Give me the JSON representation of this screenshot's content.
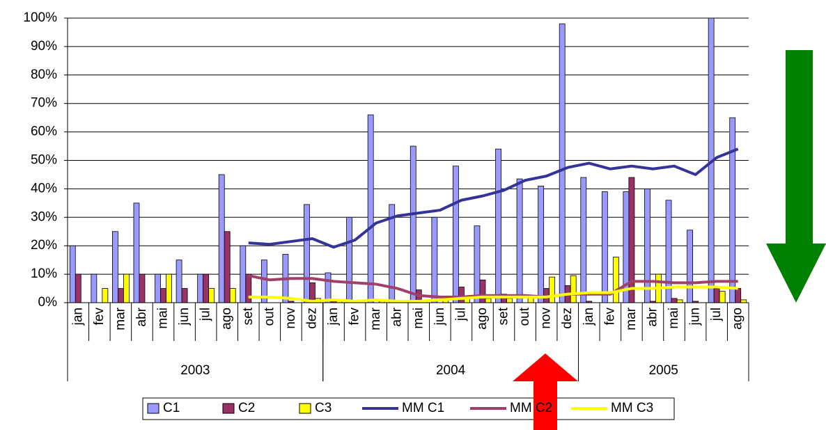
{
  "chart_data": {
    "type": "bar",
    "groups": [
      {
        "label": "2003",
        "categories": [
          "jan",
          "fev",
          "mar",
          "abr",
          "mai",
          "jun",
          "jul",
          "ago",
          "set",
          "out",
          "nov",
          "dez"
        ]
      },
      {
        "label": "2004",
        "categories": [
          "jan",
          "fev",
          "mar",
          "abr",
          "mai",
          "jun",
          "jul",
          "ago",
          "set",
          "out",
          "nov",
          "dez"
        ]
      },
      {
        "label": "2005",
        "categories": [
          "jan",
          "fev",
          "mar",
          "abr",
          "mai",
          "jun",
          "jul",
          "ago"
        ]
      }
    ],
    "series": [
      {
        "name": "C1",
        "type": "bar",
        "color": "#9999ff",
        "values": [
          20,
          10,
          25,
          35,
          10,
          15,
          10,
          45,
          20,
          15,
          17,
          34.5,
          10.5,
          30,
          66,
          34.5,
          55,
          30,
          48,
          27,
          54,
          43.5,
          41,
          98,
          44,
          39,
          39,
          40,
          36,
          25.5,
          100,
          65
        ]
      },
      {
        "name": "C2",
        "type": "bar",
        "color": "#993366",
        "values": [
          10,
          0,
          5,
          10,
          5,
          5,
          10,
          25,
          10,
          0,
          0.5,
          7,
          1,
          0,
          0,
          0,
          4.5,
          0,
          5.5,
          8,
          3,
          0,
          5,
          6,
          0.5,
          0,
          44,
          0.5,
          1.5,
          0.5,
          5,
          5
        ]
      },
      {
        "name": "C3",
        "type": "bar",
        "color": "#ffff00",
        "values": [
          0,
          5,
          10,
          0,
          10,
          0,
          5,
          5,
          0,
          0,
          0,
          1.5,
          1,
          0,
          0.5,
          0,
          0.5,
          1,
          1.5,
          1.5,
          1.5,
          2,
          9,
          9.5,
          0,
          16,
          0,
          10,
          1,
          0,
          4,
          1
        ]
      },
      {
        "name": "MM C1",
        "type": "line",
        "color": "#333399",
        "values": [
          null,
          null,
          null,
          null,
          null,
          null,
          null,
          null,
          21,
          20.5,
          21.5,
          22.5,
          19.5,
          22,
          28,
          30.5,
          31.5,
          32.5,
          36,
          37.5,
          39.5,
          43,
          44.5,
          47.5,
          49,
          47,
          48,
          47,
          48,
          45,
          51,
          54
        ]
      },
      {
        "name": "MM C2",
        "type": "line",
        "color": "#a0406a",
        "values": [
          null,
          null,
          null,
          null,
          null,
          null,
          null,
          null,
          9.5,
          8,
          8.5,
          8.5,
          7.5,
          7,
          6.5,
          5,
          2.5,
          2,
          2,
          2.5,
          2.5,
          2.5,
          2,
          3,
          3,
          3,
          7.5,
          7.5,
          7,
          7,
          7.5,
          7.5
        ]
      },
      {
        "name": "MM C3",
        "type": "line",
        "color": "#ffff00",
        "values": [
          null,
          null,
          null,
          null,
          null,
          null,
          null,
          null,
          2,
          2,
          1.5,
          0.5,
          1,
          0.5,
          1,
          0.5,
          0.5,
          1,
          1.5,
          2,
          2,
          2,
          2,
          3,
          3.5,
          3.5,
          5,
          5,
          5.5,
          5.5,
          5.5,
          5
        ]
      }
    ],
    "ylim": [
      0,
      100
    ],
    "yticks": [
      {
        "value": 0,
        "label": "0%"
      },
      {
        "value": 10,
        "label": "10%"
      },
      {
        "value": 20,
        "label": "20%"
      },
      {
        "value": 30,
        "label": "30%"
      },
      {
        "value": 40,
        "label": "40%"
      },
      {
        "value": 50,
        "label": "50%"
      },
      {
        "value": 60,
        "label": "60%"
      },
      {
        "value": 70,
        "label": "70%"
      },
      {
        "value": 80,
        "label": "80%"
      },
      {
        "value": 90,
        "label": "90%"
      },
      {
        "value": 100,
        "label": "100%"
      }
    ],
    "grid": true
  }
}
